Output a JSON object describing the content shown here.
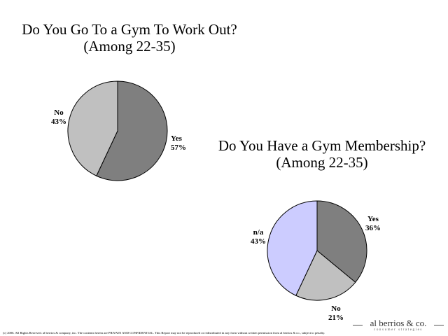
{
  "colors": {
    "background": "#ffffff",
    "dark_gray": "#7f7f7f",
    "light_gray": "#c0c0c0",
    "lavender": "#ccccff"
  },
  "chart_data": [
    {
      "type": "pie",
      "title": "Do You Go To a Gym To Work Out?",
      "subtitle": "(Among 22-35)",
      "slices": [
        {
          "label": "Yes",
          "value": 57,
          "display": "57%",
          "color": "#7f7f7f"
        },
        {
          "label": "No",
          "value": 43,
          "display": "43%",
          "color": "#c0c0c0"
        }
      ]
    },
    {
      "type": "pie",
      "title": "Do You Have a Gym Membership?",
      "subtitle": "(Among 22-35)",
      "slices": [
        {
          "label": "Yes",
          "value": 36,
          "display": "36%",
          "color": "#7f7f7f"
        },
        {
          "label": "No",
          "value": 21,
          "display": "21%",
          "color": "#c0c0c0"
        },
        {
          "label": "n/a",
          "value": 43,
          "display": "43%",
          "color": "#ccccff"
        }
      ]
    }
  ],
  "footer": {
    "note": "(c) 2006. All Rights Reserved. al berrios & company, inc. The contents herein are PRIVATE AND CONFIDENTIAL. This Report may not be reproduced or redistributed in any form without written permission from al berrios & co., subject to penalty.",
    "logo_name": "al berrios & co.",
    "logo_tagline": "consumer strategies"
  }
}
